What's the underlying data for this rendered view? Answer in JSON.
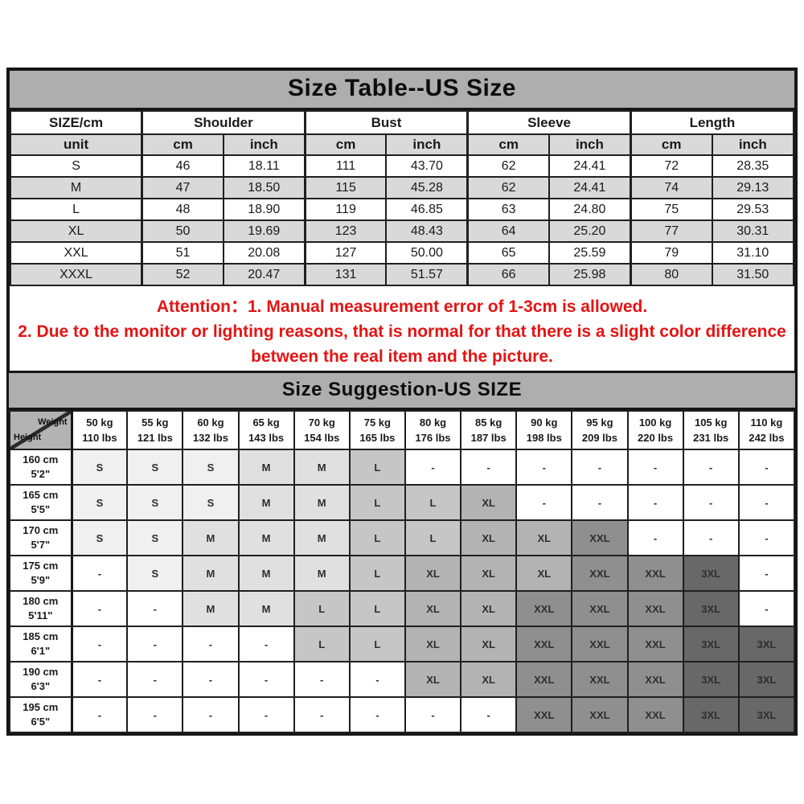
{
  "size_table": {
    "title": "Size Table--US Size",
    "column_groups": [
      "SIZE/cm",
      "Shoulder",
      "Bust",
      "Sleeve",
      "Length"
    ],
    "unit_row": [
      "unit",
      "cm",
      "inch",
      "cm",
      "inch",
      "cm",
      "inch",
      "cm",
      "inch"
    ],
    "rows": [
      {
        "size": "S",
        "values": [
          "46",
          "18.11",
          "111",
          "43.70",
          "62",
          "24.41",
          "72",
          "28.35"
        ]
      },
      {
        "size": "M",
        "values": [
          "47",
          "18.50",
          "115",
          "45.28",
          "62",
          "24.41",
          "74",
          "29.13"
        ]
      },
      {
        "size": "L",
        "values": [
          "48",
          "18.90",
          "119",
          "46.85",
          "63",
          "24.80",
          "75",
          "29.53"
        ]
      },
      {
        "size": "XL",
        "values": [
          "50",
          "19.69",
          "123",
          "48.43",
          "64",
          "25.20",
          "77",
          "30.31"
        ]
      },
      {
        "size": "XXL",
        "values": [
          "51",
          "20.08",
          "127",
          "50.00",
          "65",
          "25.59",
          "79",
          "31.10"
        ]
      },
      {
        "size": "XXXL",
        "values": [
          "52",
          "20.47",
          "131",
          "51.57",
          "66",
          "25.98",
          "80",
          "31.50"
        ]
      }
    ],
    "attention": {
      "line1": "Attention：1. Manual measurement error of 1-3cm is allowed.",
      "line2": "2. Due to the monitor or lighting reasons, that is normal for that there is a slight color difference",
      "line3": "between the real item and the picture.",
      "text_color": "#e41414"
    }
  },
  "suggestion_table": {
    "title": "Size Suggestion-US SIZE",
    "corner": {
      "top_right": "Weight",
      "bottom_left": "Height"
    },
    "weight_headers": [
      [
        "50 kg",
        "110 lbs"
      ],
      [
        "55 kg",
        "121 lbs"
      ],
      [
        "60 kg",
        "132 lbs"
      ],
      [
        "65 kg",
        "143 lbs"
      ],
      [
        "70 kg",
        "154 lbs"
      ],
      [
        "75 kg",
        "165 lbs"
      ],
      [
        "80 kg",
        "176 lbs"
      ],
      [
        "85 kg",
        "187 lbs"
      ],
      [
        "90 kg",
        "198 lbs"
      ],
      [
        "95 kg",
        "209 lbs"
      ],
      [
        "100 kg",
        "220 lbs"
      ],
      [
        "105 kg",
        "231 lbs"
      ],
      [
        "110 kg",
        "242 lbs"
      ]
    ],
    "rows": [
      {
        "height": [
          "160 cm",
          "5'2\""
        ],
        "cells": [
          "S",
          "S",
          "S",
          "M",
          "M",
          "L",
          "-",
          "-",
          "-",
          "-",
          "-",
          "-",
          "-"
        ]
      },
      {
        "height": [
          "165 cm",
          "5'5\""
        ],
        "cells": [
          "S",
          "S",
          "S",
          "M",
          "M",
          "L",
          "L",
          "XL",
          "-",
          "-",
          "-",
          "-",
          "-"
        ]
      },
      {
        "height": [
          "170 cm",
          "5'7\""
        ],
        "cells": [
          "S",
          "S",
          "M",
          "M",
          "M",
          "L",
          "L",
          "XL",
          "XL",
          "XXL",
          "-",
          "-",
          "-"
        ]
      },
      {
        "height": [
          "175 cm",
          "5'9\""
        ],
        "cells": [
          "-",
          "S",
          "M",
          "M",
          "M",
          "L",
          "XL",
          "XL",
          "XL",
          "XXL",
          "XXL",
          "3XL",
          "-"
        ]
      },
      {
        "height": [
          "180 cm",
          "5'11\""
        ],
        "cells": [
          "-",
          "-",
          "M",
          "M",
          "L",
          "L",
          "XL",
          "XL",
          "XXL",
          "XXL",
          "XXL",
          "3XL",
          "-"
        ]
      },
      {
        "height": [
          "185 cm",
          "6'1\""
        ],
        "cells": [
          "-",
          "-",
          "-",
          "-",
          "L",
          "L",
          "XL",
          "XL",
          "XXL",
          "XXL",
          "XXL",
          "3XL",
          "3XL"
        ]
      },
      {
        "height": [
          "190 cm",
          "6'3\""
        ],
        "cells": [
          "-",
          "-",
          "-",
          "-",
          "-",
          "-",
          "XL",
          "XL",
          "XXL",
          "XXL",
          "XXL",
          "3XL",
          "3XL"
        ]
      },
      {
        "height": [
          "195 cm",
          "6'5\""
        ],
        "cells": [
          "-",
          "-",
          "-",
          "-",
          "-",
          "-",
          "-",
          "-",
          "XXL",
          "XXL",
          "XXL",
          "3XL",
          "3XL"
        ]
      }
    ],
    "cell_colors": {
      "S": "#f0f0f0",
      "M": "#e0e0e0",
      "L": "#c6c6c6",
      "XL": "#b3b3b3",
      "XXL": "#8f8f8f",
      "3XL": "#686868",
      "-": "#ffffff"
    }
  }
}
